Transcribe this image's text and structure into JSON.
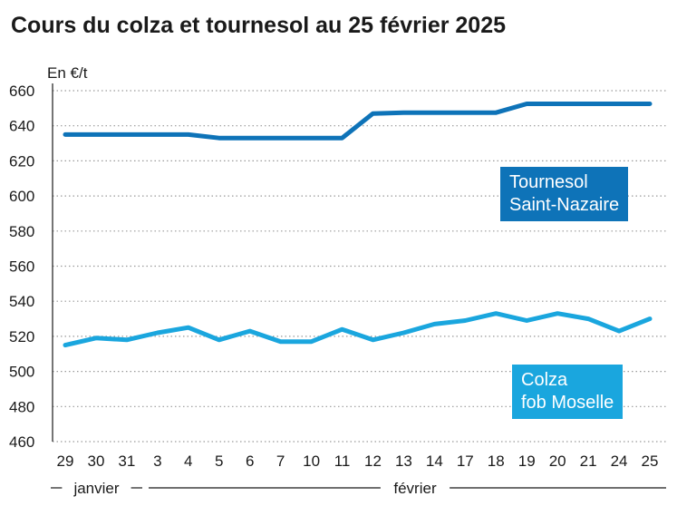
{
  "chart_data": {
    "type": "line",
    "title": "Cours du colza et tournesol au 25 février 2025",
    "ylabel": "En €/t",
    "ylim": [
      460,
      660
    ],
    "yticks": [
      460,
      480,
      500,
      520,
      540,
      560,
      580,
      600,
      620,
      640,
      660
    ],
    "grid": true,
    "categories": [
      "29",
      "30",
      "31",
      "3",
      "4",
      "5",
      "6",
      "7",
      "10",
      "11",
      "12",
      "13",
      "14",
      "17",
      "18",
      "19",
      "20",
      "21",
      "24",
      "25"
    ],
    "month_labels": [
      {
        "label": "janvier",
        "from_index": 0,
        "to_index": 2
      },
      {
        "label": "février",
        "from_index": 3,
        "to_index": 19
      }
    ],
    "series": [
      {
        "name": "Tournesol Saint-Nazaire",
        "legend_lines": [
          "Tournesol",
          "Saint-Nazaire"
        ],
        "color": "#0e73b8",
        "values": [
          635,
          635,
          635,
          635,
          635,
          633,
          633,
          633,
          633,
          633,
          647,
          647.5,
          647.5,
          647.5,
          647.5,
          652.5,
          652.5,
          652.5,
          652.5,
          652.5
        ]
      },
      {
        "name": "Colza fob Moselle",
        "legend_lines": [
          "Colza",
          "fob Moselle"
        ],
        "color": "#1aa6de",
        "values": [
          515,
          519,
          518,
          522,
          525,
          518,
          523,
          517,
          517,
          524,
          518,
          522,
          527,
          529,
          533,
          529,
          533,
          530,
          523,
          530
        ]
      }
    ]
  }
}
